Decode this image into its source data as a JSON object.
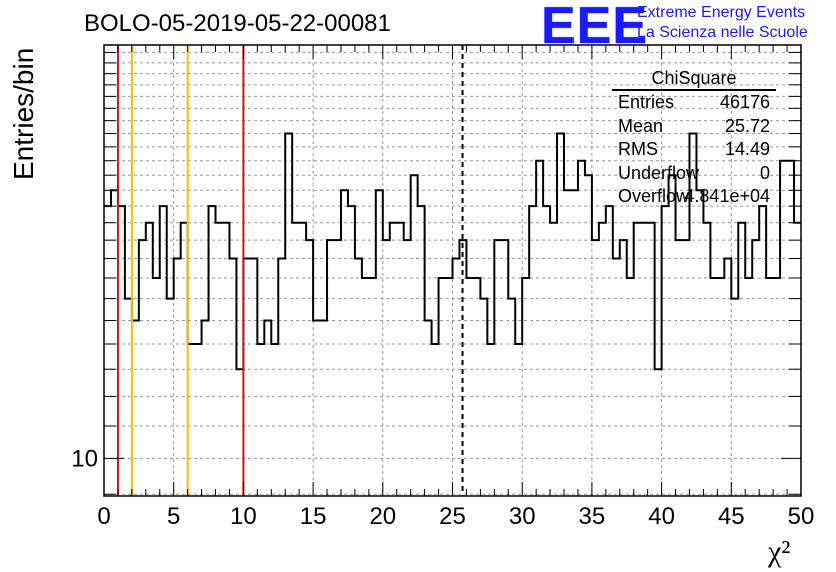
{
  "title": "BOLO-05-2019-05-22-00081",
  "logo": {
    "text": "EEE",
    "line1": "Extreme Energy Events",
    "line2": "La Scienza nelle Scuole",
    "color": "#1a1aff"
  },
  "stats": {
    "title": "ChiSquare",
    "rows": [
      {
        "key": "Entries",
        "value": "46176"
      },
      {
        "key": "Mean",
        "value": "25.72"
      },
      {
        "key": "RMS",
        "value": "14.49"
      },
      {
        "key": "Underflow",
        "value": "0"
      },
      {
        "key": "Overflow",
        "value": "4.841e+04"
      }
    ]
  },
  "chart_data": {
    "type": "histogram",
    "title": "BOLO-05-2019-05-22-00081",
    "xlabel": "χ²",
    "ylabel": "Entries/bin",
    "xlim": [
      0,
      50
    ],
    "log_y": true,
    "ylim_log10": [
      0.952,
      1.528
    ],
    "x_ticks": [
      0,
      5,
      10,
      15,
      20,
      25,
      30,
      35,
      40,
      45,
      50
    ],
    "y_tick_labels": [
      {
        "value": 10,
        "label": "10"
      }
    ],
    "grid": true,
    "bin_width": 0.5,
    "bin_counts": [
      21,
      22,
      21,
      16,
      15,
      19,
      20,
      17,
      21,
      16,
      18,
      20,
      14,
      14,
      15,
      21,
      20,
      20,
      18,
      13,
      18,
      18,
      14,
      15,
      14,
      18,
      26,
      20,
      20,
      19,
      15,
      15,
      19,
      19,
      22,
      21,
      18,
      17,
      17,
      22,
      19,
      20,
      20,
      19,
      23,
      21,
      15,
      14,
      17,
      17,
      18,
      19,
      17,
      17,
      16,
      14,
      19,
      19,
      16,
      14,
      17,
      21,
      24,
      21,
      20,
      26,
      22,
      22,
      24,
      23,
      19,
      20,
      21,
      18,
      19,
      17,
      20,
      20,
      20,
      13,
      21,
      23,
      19,
      19,
      26,
      22,
      20,
      17,
      17,
      18,
      16,
      20,
      17,
      19,
      21,
      17,
      17,
      24,
      24,
      20
    ],
    "reference_lines": [
      {
        "x": 1,
        "color": "#dd1111"
      },
      {
        "x": 2,
        "color": "#f0c000"
      },
      {
        "x": 6,
        "color": "#f0c000"
      },
      {
        "x": 10,
        "color": "#dd1111"
      },
      {
        "x": 25.72,
        "color": "#000000",
        "dashed": true
      }
    ]
  }
}
